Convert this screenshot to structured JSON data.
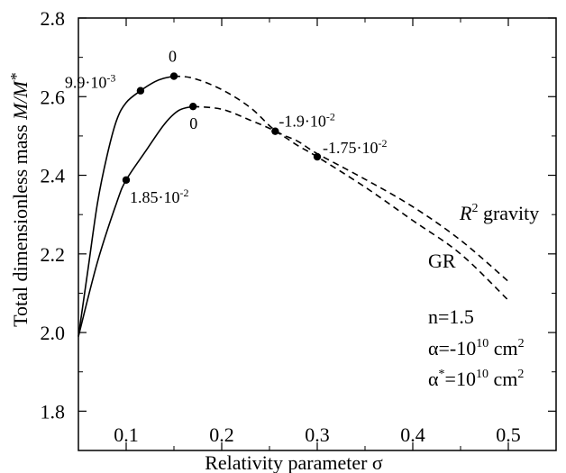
{
  "chart_data": {
    "type": "line",
    "xlabel": "Relativity parameter σ",
    "ylabel": "Total dimensionless mass M/M*",
    "xlim": [
      0.05,
      0.55
    ],
    "ylim": [
      1.7,
      2.8
    ],
    "x_ticks": [
      0.1,
      0.2,
      0.3,
      0.4,
      0.5
    ],
    "x_tick_labels": [
      "0.1",
      "0.2",
      "0.3",
      "0.4",
      "0.5"
    ],
    "y_ticks": [
      1.8,
      2.0,
      2.2,
      2.4,
      2.6,
      2.8
    ],
    "y_tick_labels": [
      "1.8",
      "2.0",
      "2.2",
      "2.4",
      "2.6",
      "2.8"
    ],
    "series": [
      {
        "name": "R² gravity",
        "solid": {
          "x": [
            0.05,
            0.06,
            0.07,
            0.08,
            0.09,
            0.1,
            0.115,
            0.13,
            0.14,
            0.15
          ],
          "y": [
            1.99,
            2.16,
            2.33,
            2.45,
            2.54,
            2.585,
            2.615,
            2.638,
            2.647,
            2.652
          ]
        },
        "dashed": {
          "x": [
            0.15,
            0.17,
            0.2,
            0.23,
            0.256,
            0.28,
            0.3,
            0.35,
            0.4,
            0.45,
            0.5
          ],
          "y": [
            2.652,
            2.647,
            2.618,
            2.572,
            2.514,
            2.486,
            2.455,
            2.39,
            2.32,
            2.235,
            2.13
          ]
        }
      },
      {
        "name": "GR",
        "solid": {
          "x": [
            0.05,
            0.07,
            0.09,
            0.1,
            0.12,
            0.14,
            0.155,
            0.17
          ],
          "y": [
            1.99,
            2.18,
            2.33,
            2.388,
            2.46,
            2.53,
            2.565,
            2.575
          ]
        },
        "dashed": {
          "x": [
            0.17,
            0.2,
            0.23,
            0.256,
            0.28,
            0.3,
            0.35,
            0.4,
            0.45,
            0.5
          ],
          "y": [
            2.575,
            2.568,
            2.54,
            2.512,
            2.475,
            2.447,
            2.37,
            2.285,
            2.2,
            2.082
          ]
        }
      }
    ],
    "points": [
      {
        "x": 0.115,
        "y": 2.615,
        "label": "9.9·10",
        "sup": "-3"
      },
      {
        "x": 0.15,
        "y": 2.652,
        "label": "0",
        "sup": ""
      },
      {
        "x": 0.17,
        "y": 2.575,
        "label": "0",
        "sup": ""
      },
      {
        "x": 0.1,
        "y": 2.388,
        "label": "1.85·10",
        "sup": "-2"
      },
      {
        "x": 0.256,
        "y": 2.512,
        "label": "-1.9·10",
        "sup": "-2"
      },
      {
        "x": 0.3,
        "y": 2.447,
        "label": "-1.75·10",
        "sup": "-2"
      }
    ],
    "curve_labels": {
      "r2": {
        "base": "R",
        "sup": "2",
        "rest": " gravity"
      },
      "gr": "GR"
    },
    "params": {
      "n": "n=1.5",
      "alpha": {
        "base": "α=-10",
        "sup": "10",
        "rest": " cm",
        "sup2": "2"
      },
      "alpha_star": {
        "base": "α",
        "sup": "*",
        "mid": "=10",
        "sup2": "10",
        "rest": " cm",
        "sup3": "2"
      }
    }
  }
}
